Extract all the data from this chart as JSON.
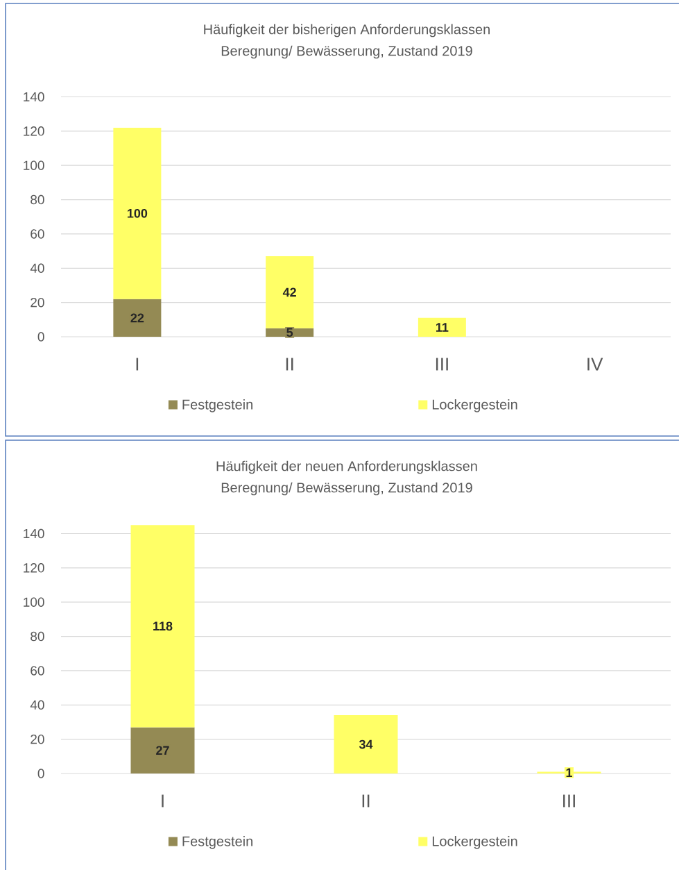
{
  "chart_data": [
    {
      "type": "bar",
      "title": "Häufigkeit der bisherigen Anforderungsklassen",
      "subtitle": "Beregnung/ Bewässerung, Zustand 2019",
      "categories": [
        "I",
        "II",
        "III",
        "IV"
      ],
      "series": [
        {
          "name": "Festgestein",
          "color": "#948a54",
          "values": [
            22,
            5,
            null,
            null
          ]
        },
        {
          "name": "Lockergestein",
          "color": "#ffff66",
          "values": [
            100,
            42,
            11,
            null
          ]
        }
      ],
      "stacked": true,
      "ylim": [
        0,
        140
      ],
      "yticks": [
        0,
        20,
        40,
        60,
        80,
        100,
        120,
        140
      ],
      "grid": "y",
      "legend": "bottom",
      "data_labels": true
    },
    {
      "type": "bar",
      "title": "Häufigkeit der neuen Anforderungsklassen",
      "subtitle": "Beregnung/ Bewässerung, Zustand 2019",
      "categories": [
        "I",
        "II",
        "III"
      ],
      "series": [
        {
          "name": "Festgestein",
          "color": "#948a54",
          "values": [
            27,
            null,
            null
          ]
        },
        {
          "name": "Lockergestein",
          "color": "#ffff66",
          "values": [
            118,
            34,
            1
          ]
        }
      ],
      "stacked": true,
      "ylim": [
        0,
        145
      ],
      "yticks": [
        0,
        20,
        40,
        60,
        80,
        100,
        120,
        140
      ],
      "grid": "y",
      "legend": "bottom",
      "data_labels": true
    }
  ]
}
